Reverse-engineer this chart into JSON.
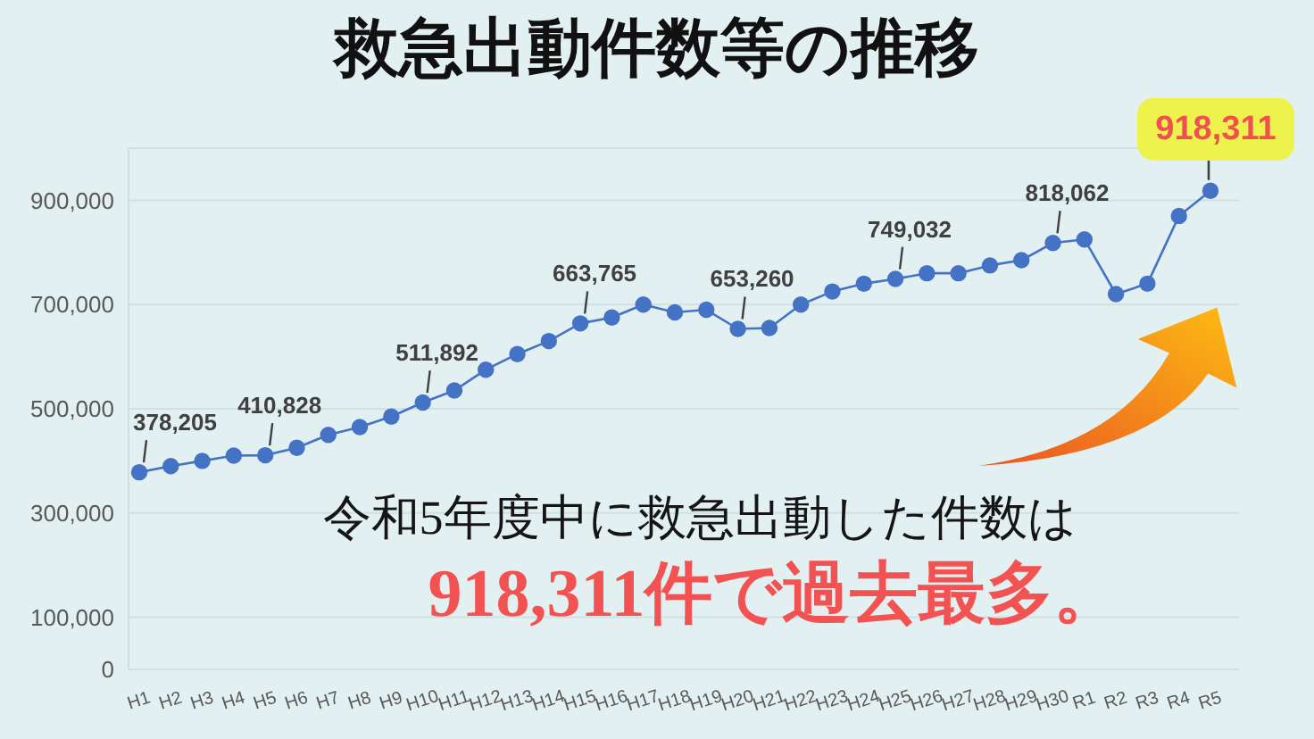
{
  "chart_data": {
    "type": "line",
    "title": "救急出動件数等の推移",
    "categories": [
      "H1",
      "H2",
      "H3",
      "H4",
      "H5",
      "H6",
      "H7",
      "H8",
      "H9",
      "H10",
      "H11",
      "H12",
      "H13",
      "H14",
      "H15",
      "H16",
      "H17",
      "H18",
      "H19",
      "H20",
      "H21",
      "H22",
      "H23",
      "H24",
      "H25",
      "H26",
      "H27",
      "H28",
      "H29",
      "H30",
      "R1",
      "R2",
      "R3",
      "R4",
      "R5"
    ],
    "values": [
      378205,
      390000,
      400000,
      410000,
      410828,
      425000,
      450000,
      465000,
      485000,
      511892,
      535000,
      575000,
      605000,
      630000,
      663765,
      675000,
      700000,
      685000,
      690000,
      653260,
      655000,
      700000,
      725000,
      740000,
      749032,
      760000,
      760000,
      775000,
      785000,
      818062,
      825000,
      720000,
      740000,
      870000,
      918311
    ],
    "value_labels": [
      "378,205",
      null,
      null,
      null,
      "410,828",
      null,
      null,
      null,
      null,
      "511,892",
      null,
      null,
      null,
      null,
      "663,765",
      null,
      null,
      null,
      null,
      "653,260",
      null,
      null,
      null,
      null,
      "749,032",
      null,
      null,
      null,
      null,
      "818,062",
      null,
      null,
      null,
      null,
      "918,311"
    ],
    "color": "#4472c4",
    "marker": "circle",
    "grid": "y",
    "ylim": [
      0,
      1000000
    ],
    "yticks": [
      0,
      {
        "value": 100000,
        "label": "100,000"
      },
      {
        "value": 300000,
        "label": "300,000"
      },
      {
        "value": 500000,
        "label": "500,000"
      },
      {
        "value": 700000,
        "label": "700,000"
      },
      {
        "value": 900000,
        "label": "900,000"
      }
    ],
    "annotations": [
      "令和5年度中に救急出動した件数は",
      "918,311件で過去最多。"
    ]
  }
}
